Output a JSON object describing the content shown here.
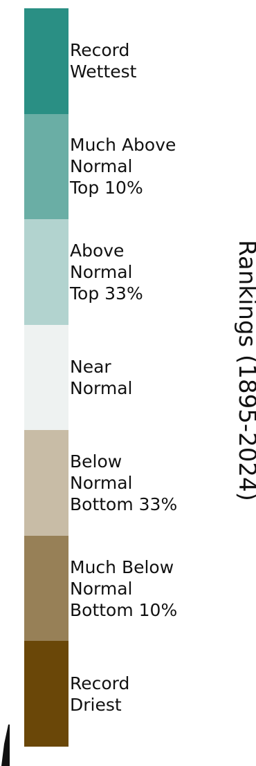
{
  "legend": {
    "title": "Rankings (1895-2024)",
    "categories": [
      {
        "lines": [
          "Record",
          "Wettest"
        ],
        "color": "#2a8f84"
      },
      {
        "lines": [
          "Much Above",
          "Normal",
          "Top 10%"
        ],
        "color": "#6aaea5"
      },
      {
        "lines": [
          "Above",
          "Normal",
          "Top 33%"
        ],
        "color": "#b2d3cf"
      },
      {
        "lines": [
          "Near",
          "Normal"
        ],
        "color": "#eef2f1"
      },
      {
        "lines": [
          "Below",
          "Normal",
          "Bottom 33%"
        ],
        "color": "#c8bca6"
      },
      {
        "lines": [
          "Much Below",
          "Normal",
          "Bottom 10%"
        ],
        "color": "#978057"
      },
      {
        "lines": [
          "Record",
          "Driest"
        ],
        "color": "#6a4708"
      }
    ]
  }
}
